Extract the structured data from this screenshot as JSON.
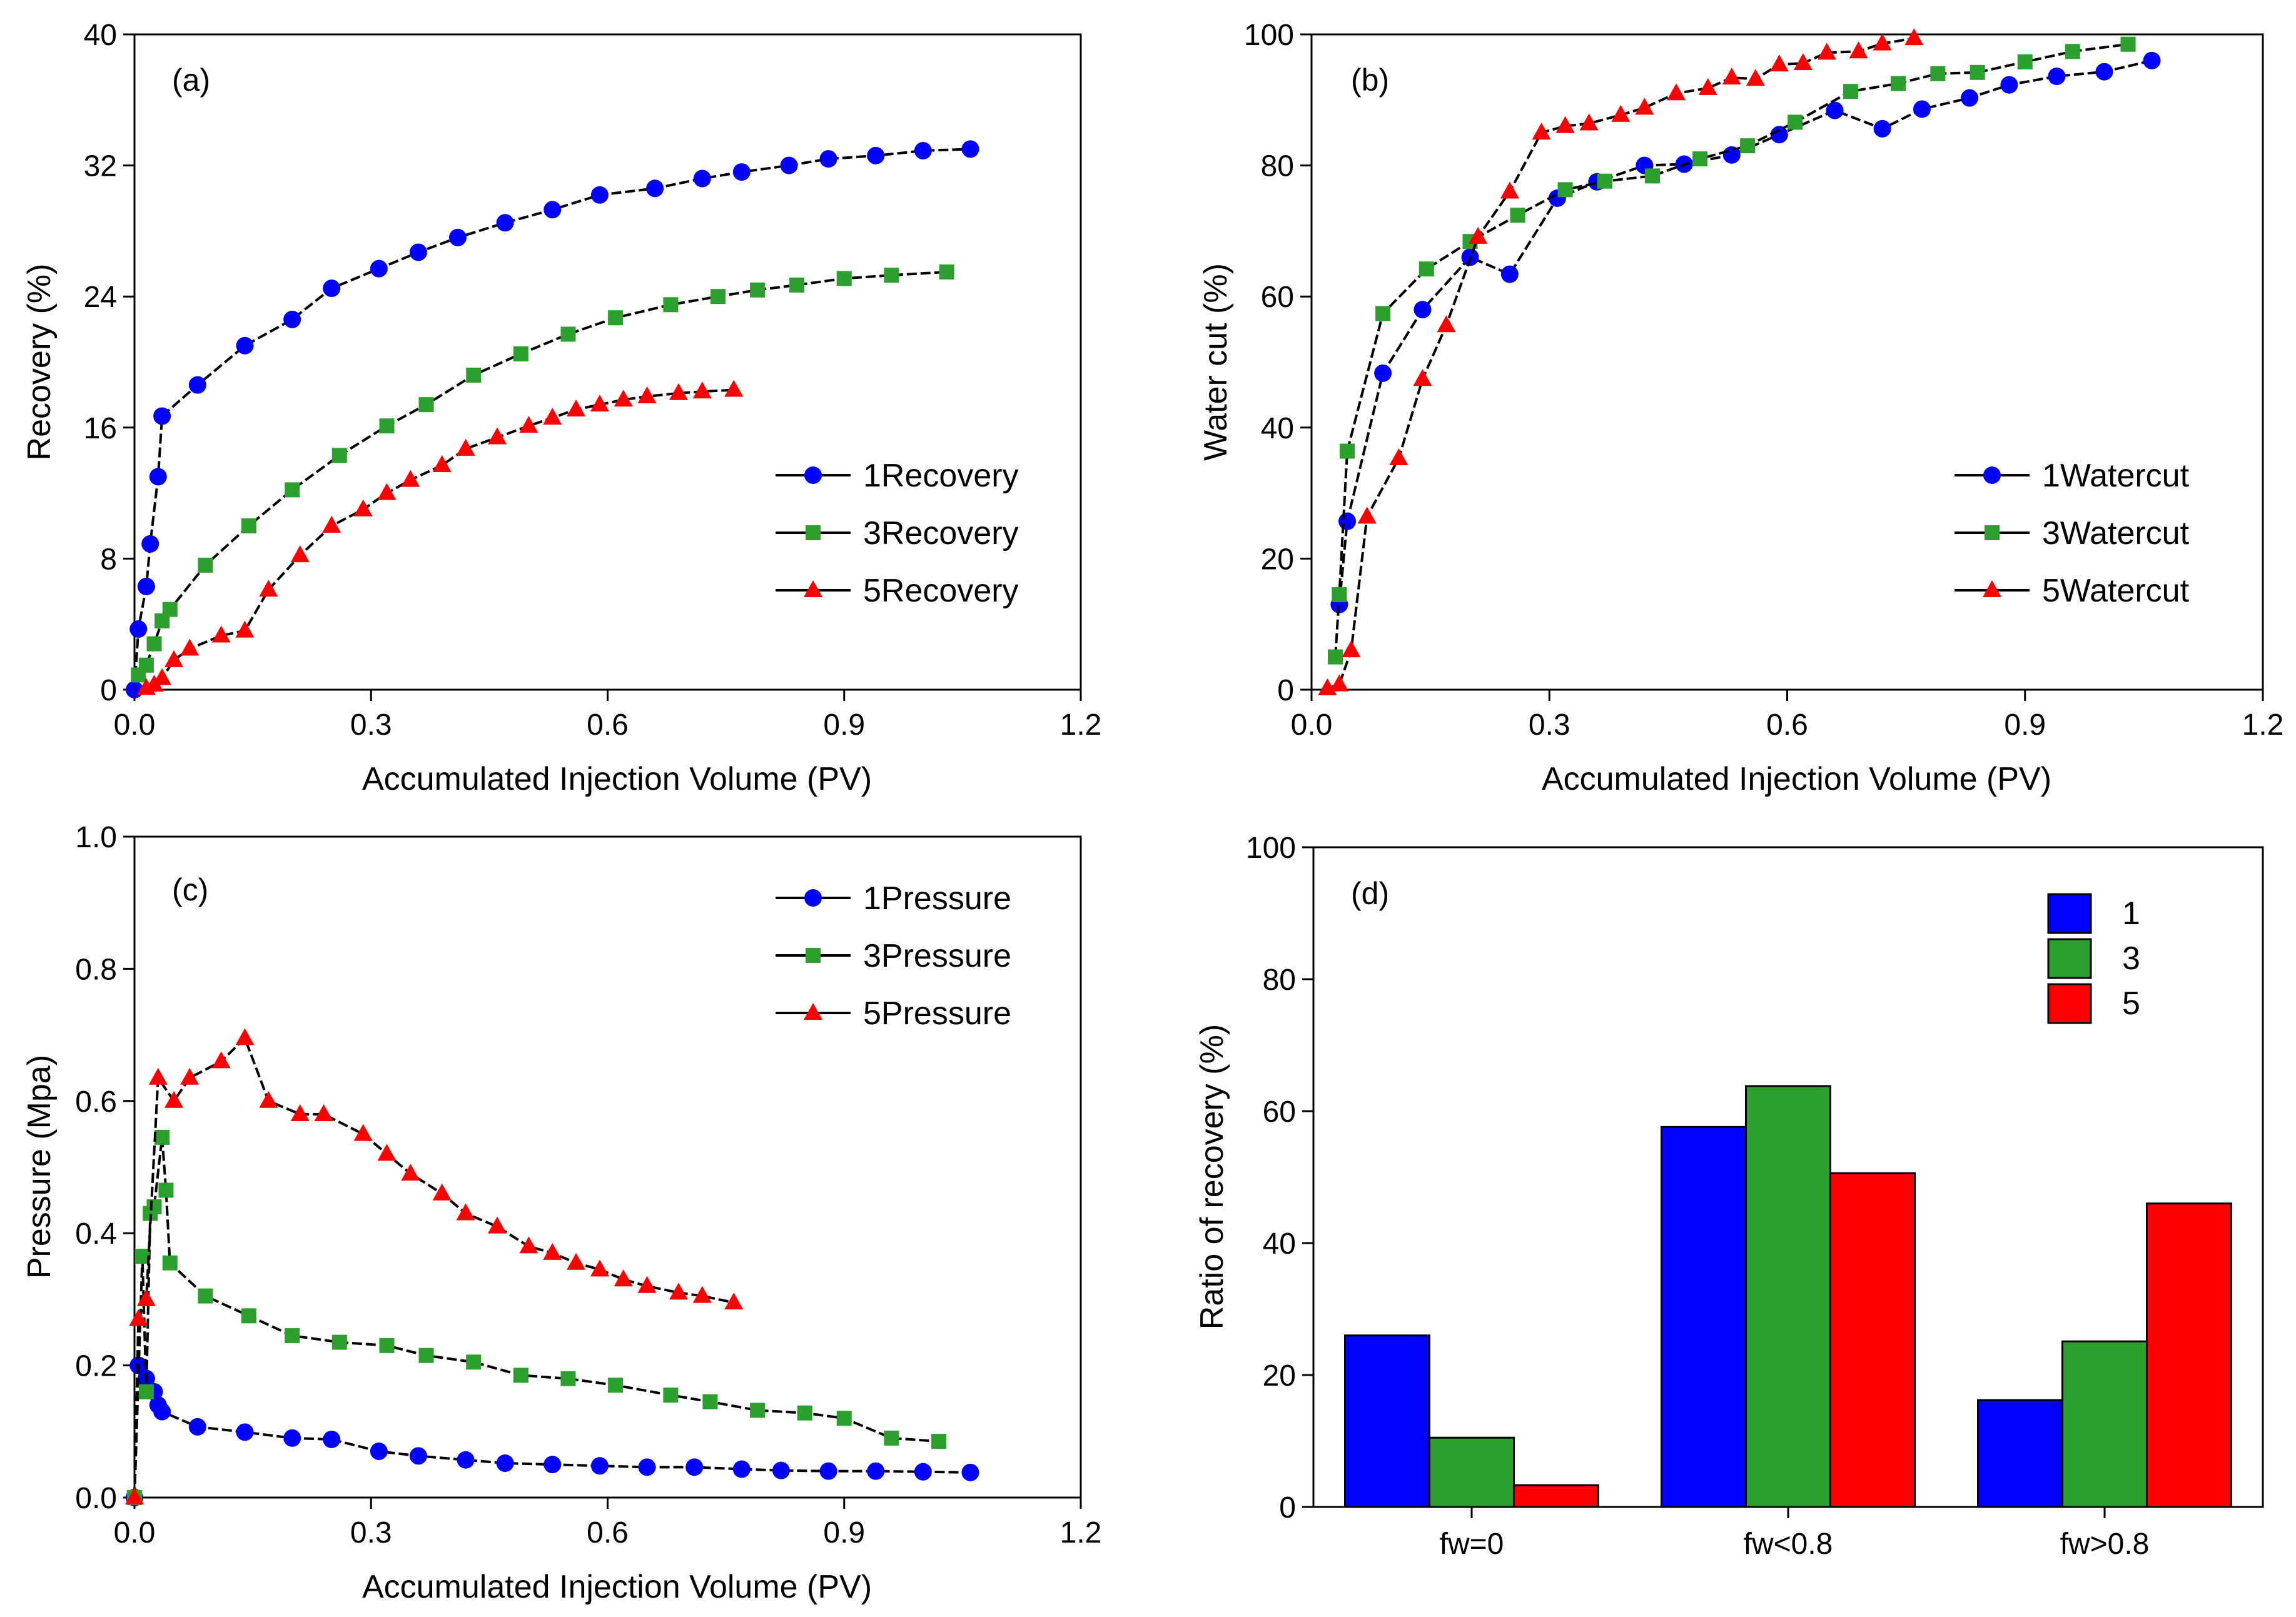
{
  "figure": {
    "colors": {
      "s1": "#0000ff",
      "s3": "#2ca02c",
      "s5": "#ff0000",
      "axis": "#000000",
      "connector": "#000000"
    }
  },
  "chart_data": [
    {
      "panel": "(a)",
      "type": "line",
      "xlabel": "Accumulated Injection Volume (PV)",
      "ylabel": "Recovery (%)",
      "xlim": [
        0,
        1.2
      ],
      "ylim": [
        0,
        40
      ],
      "xticks": [
        "0.0",
        "0.3",
        "0.6",
        "0.9",
        "1.2"
      ],
      "yticks": [
        "0",
        "8",
        "16",
        "24",
        "32",
        "40"
      ],
      "legend_position": "right-middle",
      "series": [
        {
          "name": "1Recovery",
          "marker": "circle",
          "color": "#0000ff",
          "x": [
            0,
            0.005,
            0.015,
            0.02,
            0.03,
            0.035,
            0.08,
            0.14,
            0.2,
            0.25,
            0.31,
            0.36,
            0.41,
            0.47,
            0.53,
            0.59,
            0.66,
            0.72,
            0.77,
            0.83,
            0.88,
            0.94,
            1.0,
            1.06
          ],
          "y": [
            0,
            3.7,
            6.3,
            8.9,
            13,
            16.7,
            18.6,
            21,
            22.6,
            24.5,
            25.7,
            26.7,
            27.6,
            28.5,
            29.3,
            30.2,
            30.6,
            31.2,
            31.6,
            32,
            32.4,
            32.6,
            32.9,
            33
          ]
        },
        {
          "name": "3Recovery",
          "marker": "square",
          "color": "#2ca02c",
          "x": [
            0.005,
            0.015,
            0.025,
            0.035,
            0.045,
            0.09,
            0.145,
            0.2,
            0.26,
            0.32,
            0.37,
            0.43,
            0.49,
            0.55,
            0.61,
            0.68,
            0.74,
            0.79,
            0.84,
            0.9,
            0.96,
            1.03
          ],
          "y": [
            0.9,
            1.5,
            2.8,
            4.2,
            4.9,
            7.6,
            10,
            12.2,
            14.3,
            16.1,
            17.4,
            19.2,
            20.5,
            21.7,
            22.7,
            23.5,
            24,
            24.4,
            24.7,
            25.1,
            25.3,
            25.5
          ]
        },
        {
          "name": "5Recovery",
          "marker": "triangle",
          "color": "#ff0000",
          "x": [
            0.015,
            0.025,
            0.035,
            0.05,
            0.07,
            0.11,
            0.14,
            0.17,
            0.21,
            0.25,
            0.29,
            0.32,
            0.35,
            0.39,
            0.42,
            0.46,
            0.5,
            0.53,
            0.56,
            0.59,
            0.62,
            0.65,
            0.69,
            0.72,
            0.76
          ],
          "y": [
            0.1,
            0.3,
            0.7,
            1.8,
            2.5,
            3.3,
            3.6,
            6.1,
            8.2,
            10,
            11,
            12,
            12.8,
            13.7,
            14.7,
            15.4,
            16.1,
            16.6,
            17.1,
            17.4,
            17.7,
            17.9,
            18.1,
            18.2,
            18.3
          ]
        }
      ]
    },
    {
      "panel": "(b)",
      "type": "line",
      "xlabel": "Accumulated Injection Volume (PV)",
      "ylabel": "Water cut (%)",
      "xlim": [
        0,
        1.2
      ],
      "ylim": [
        0,
        100
      ],
      "xticks": [
        "0.0",
        "0.3",
        "0.6",
        "0.9",
        "1.2"
      ],
      "yticks": [
        "0",
        "20",
        "40",
        "60",
        "80",
        "100"
      ],
      "legend_position": "right-middle",
      "series": [
        {
          "name": "1Watercut",
          "marker": "circle",
          "color": "#0000ff",
          "x": [
            0.035,
            0.045,
            0.09,
            0.14,
            0.2,
            0.25,
            0.31,
            0.36,
            0.42,
            0.47,
            0.53,
            0.59,
            0.66,
            0.72,
            0.77,
            0.83,
            0.88,
            0.94,
            1.0,
            1.06
          ],
          "y": [
            13,
            25.7,
            48.3,
            58,
            66,
            63.4,
            75,
            77.5,
            80,
            80.2,
            81.6,
            84.7,
            88.4,
            85.6,
            88.6,
            90.3,
            92.3,
            93.6,
            94.3,
            96
          ]
        },
        {
          "name": "3Watercut",
          "marker": "square",
          "color": "#2ca02c",
          "x": [
            0.03,
            0.035,
            0.045,
            0.09,
            0.145,
            0.2,
            0.26,
            0.32,
            0.37,
            0.43,
            0.49,
            0.55,
            0.61,
            0.68,
            0.74,
            0.79,
            0.84,
            0.9,
            0.96,
            1.03
          ],
          "y": [
            5,
            14.5,
            36.4,
            57.4,
            64.2,
            68.4,
            72.4,
            76.3,
            77.6,
            78.4,
            81,
            83,
            86.6,
            91.3,
            92.5,
            94,
            94.2,
            95.8,
            97.4,
            98.5
          ]
        },
        {
          "name": "5Watercut",
          "marker": "triangle",
          "color": "#ff0000",
          "x": [
            0.02,
            0.035,
            0.05,
            0.07,
            0.11,
            0.14,
            0.17,
            0.21,
            0.25,
            0.29,
            0.32,
            0.35,
            0.39,
            0.42,
            0.46,
            0.5,
            0.53,
            0.56,
            0.59,
            0.62,
            0.65,
            0.69,
            0.72,
            0.76
          ],
          "y": [
            0.2,
            0.8,
            6,
            26.4,
            35.3,
            47.4,
            55.6,
            69.1,
            76,
            85,
            86,
            86.4,
            87.7,
            88.8,
            91,
            91.8,
            93.4,
            93.2,
            95.4,
            95.6,
            97.2,
            97.4,
            98.6,
            99.4
          ]
        }
      ]
    },
    {
      "panel": "(c)",
      "type": "line",
      "xlabel": "Accumulated Injection Volume (PV)",
      "ylabel": "Pressure (Mpa)",
      "xlim": [
        0,
        1.2
      ],
      "ylim": [
        0,
        1.0
      ],
      "xticks": [
        "0.0",
        "0.3",
        "0.6",
        "0.9",
        "1.2"
      ],
      "yticks": [
        "0.0",
        "0.2",
        "0.4",
        "0.6",
        "0.8",
        "1.0"
      ],
      "legend_position": "top-right",
      "series": [
        {
          "name": "1Pressure",
          "marker": "circle",
          "color": "#0000ff",
          "x": [
            0,
            0.005,
            0.015,
            0.025,
            0.03,
            0.035,
            0.08,
            0.14,
            0.2,
            0.25,
            0.31,
            0.36,
            0.42,
            0.47,
            0.53,
            0.59,
            0.65,
            0.71,
            0.77,
            0.82,
            0.88,
            0.94,
            1.0,
            1.06
          ],
          "y": [
            0,
            0.2,
            0.18,
            0.16,
            0.14,
            0.13,
            0.107,
            0.099,
            0.09,
            0.088,
            0.07,
            0.063,
            0.057,
            0.052,
            0.05,
            0.048,
            0.046,
            0.046,
            0.043,
            0.041,
            0.04,
            0.04,
            0.039,
            0.038
          ]
        },
        {
          "name": "3Pressure",
          "marker": "square",
          "color": "#2ca02c",
          "x": [
            0,
            0.01,
            0.015,
            0.02,
            0.025,
            0.035,
            0.04,
            0.045,
            0.09,
            0.145,
            0.2,
            0.26,
            0.32,
            0.37,
            0.43,
            0.49,
            0.55,
            0.61,
            0.68,
            0.73,
            0.79,
            0.85,
            0.9,
            0.96,
            1.02
          ],
          "y": [
            0,
            0.365,
            0.16,
            0.43,
            0.44,
            0.545,
            0.465,
            0.355,
            0.305,
            0.275,
            0.245,
            0.235,
            0.23,
            0.215,
            0.205,
            0.185,
            0.18,
            0.17,
            0.155,
            0.145,
            0.132,
            0.128,
            0.12,
            0.09,
            0.085
          ]
        },
        {
          "name": "5Pressure",
          "marker": "triangle",
          "color": "#ff0000",
          "x": [
            0,
            0.005,
            0.015,
            0.03,
            0.05,
            0.07,
            0.11,
            0.14,
            0.17,
            0.21,
            0.24,
            0.29,
            0.32,
            0.35,
            0.39,
            0.42,
            0.46,
            0.5,
            0.53,
            0.56,
            0.59,
            0.62,
            0.65,
            0.69,
            0.72,
            0.76
          ],
          "y": [
            0,
            0.27,
            0.3,
            0.635,
            0.6,
            0.635,
            0.66,
            0.695,
            0.6,
            0.58,
            0.58,
            0.55,
            0.52,
            0.49,
            0.46,
            0.43,
            0.41,
            0.38,
            0.37,
            0.355,
            0.345,
            0.33,
            0.32,
            0.31,
            0.305,
            0.295
          ]
        }
      ]
    },
    {
      "panel": "(d)",
      "type": "bar",
      "ylabel": "Ratio of recovery (%)",
      "ylim": [
        0,
        100
      ],
      "yticks": [
        "0",
        "20",
        "40",
        "60",
        "80",
        "100"
      ],
      "categories": [
        "fw=0",
        "fw<0.8",
        "fw>0.8"
      ],
      "legend_position": "top-right",
      "series": [
        {
          "name": "1",
          "color": "#0000ff",
          "values": [
            26,
            57.6,
            16.2
          ]
        },
        {
          "name": "3",
          "color": "#2ca02c",
          "values": [
            10.5,
            63.8,
            25.1
          ]
        },
        {
          "name": "5",
          "color": "#ff0000",
          "values": [
            3.3,
            50.6,
            46
          ]
        }
      ]
    }
  ]
}
